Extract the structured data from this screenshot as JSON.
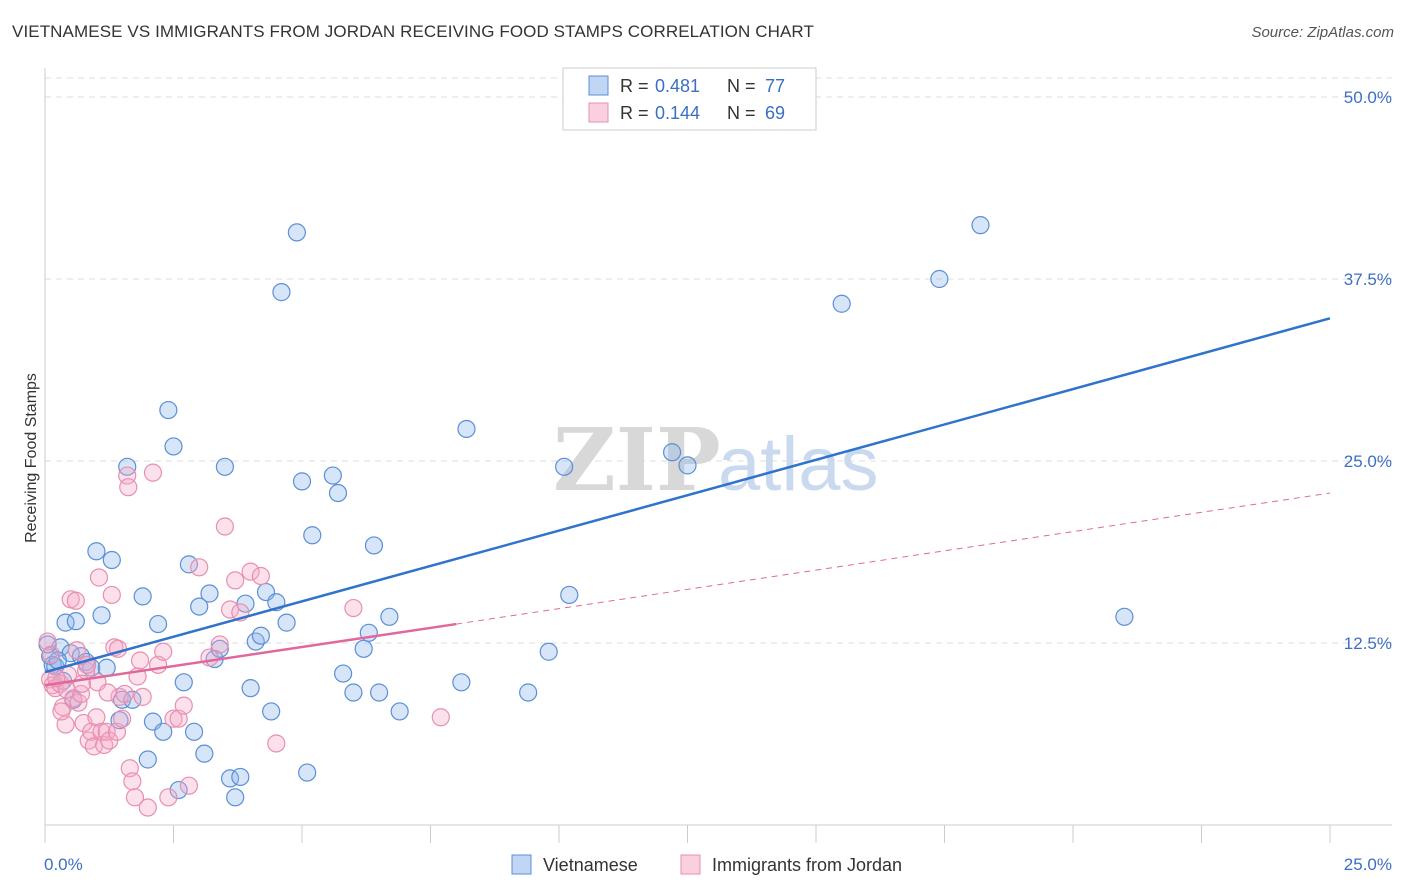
{
  "title": "VIETNAMESE VS IMMIGRANTS FROM JORDAN RECEIVING FOOD STAMPS CORRELATION CHART",
  "source": "Source: ZipAtlas.com",
  "colors": {
    "vietnamese": "#5b8fd6",
    "vietnamese_fill": "rgba(140,180,235,0.35)",
    "vietnamese_line": "#2f73cc",
    "jordan": "#e78fb0",
    "jordan_fill": "rgba(245,170,200,0.35)",
    "jordan_line": "#e0689a",
    "tick": "#3d6fc4",
    "grid": "#dddddd"
  },
  "legend": {
    "rows": [
      {
        "r_label": "R =",
        "r_value": "0.481",
        "n_label": "N =",
        "n_value": "77"
      },
      {
        "r_label": "R =",
        "r_value": "0.144",
        "n_label": "N =",
        "n_value": "69"
      }
    ]
  },
  "chart_data": {
    "type": "scatter",
    "title": "VIETNAMESE VS IMMIGRANTS FROM JORDAN RECEIVING FOOD STAMPS CORRELATION CHART",
    "xlabel": "",
    "ylabel": "Receiving Food Stamps",
    "xlim": [
      0,
      25
    ],
    "ylim": [
      0,
      50
    ],
    "x_ticks": [
      "0.0%",
      "25.0%"
    ],
    "y_ticks": [
      {
        "value": 12.5,
        "label": "12.5%"
      },
      {
        "value": 25,
        "label": "25.0%"
      },
      {
        "value": 37.5,
        "label": "37.5%"
      },
      {
        "value": 50,
        "label": "50.0%"
      }
    ],
    "grid": true,
    "legend_position": "top-center",
    "watermark": "ZIPatlas",
    "series": [
      {
        "name": "Vietnamese",
        "trend": {
          "x": [
            0,
            25
          ],
          "y": [
            10.5,
            34.8
          ]
        },
        "points": [
          [
            0.1,
            11.6
          ],
          [
            0.15,
            11.0
          ],
          [
            0.2,
            10.9
          ],
          [
            0.3,
            12.2
          ],
          [
            0.4,
            13.9
          ],
          [
            0.5,
            11.8
          ],
          [
            0.6,
            14.0
          ],
          [
            0.7,
            11.6
          ],
          [
            0.8,
            11.2
          ],
          [
            0.9,
            10.8
          ],
          [
            1.0,
            18.8
          ],
          [
            1.1,
            14.4
          ],
          [
            1.2,
            10.8
          ],
          [
            1.3,
            18.2
          ],
          [
            1.5,
            8.6
          ],
          [
            1.6,
            24.6
          ],
          [
            1.7,
            8.6
          ],
          [
            1.9,
            15.7
          ],
          [
            2.0,
            4.5
          ],
          [
            2.1,
            7.1
          ],
          [
            2.2,
            13.8
          ],
          [
            2.3,
            6.4
          ],
          [
            2.4,
            28.5
          ],
          [
            2.5,
            26.0
          ],
          [
            2.6,
            2.4
          ],
          [
            2.7,
            9.8
          ],
          [
            2.8,
            17.9
          ],
          [
            2.9,
            6.4
          ],
          [
            3.0,
            15.0
          ],
          [
            3.1,
            4.9
          ],
          [
            3.2,
            15.9
          ],
          [
            3.3,
            11.4
          ],
          [
            3.4,
            12.1
          ],
          [
            3.5,
            24.6
          ],
          [
            3.6,
            3.2
          ],
          [
            3.7,
            1.9
          ],
          [
            3.8,
            3.3
          ],
          [
            3.9,
            15.2
          ],
          [
            4.0,
            9.4
          ],
          [
            4.1,
            12.6
          ],
          [
            4.2,
            13.0
          ],
          [
            4.3,
            16.0
          ],
          [
            4.4,
            7.8
          ],
          [
            4.5,
            15.3
          ],
          [
            4.6,
            36.6
          ],
          [
            4.7,
            13.9
          ],
          [
            4.9,
            40.7
          ],
          [
            5.0,
            23.6
          ],
          [
            5.1,
            3.6
          ],
          [
            5.2,
            19.9
          ],
          [
            5.6,
            24.0
          ],
          [
            5.7,
            22.8
          ],
          [
            5.8,
            10.4
          ],
          [
            6.0,
            9.1
          ],
          [
            6.2,
            12.1
          ],
          [
            6.3,
            13.2
          ],
          [
            6.4,
            19.2
          ],
          [
            6.5,
            9.1
          ],
          [
            6.7,
            14.3
          ],
          [
            6.9,
            7.8
          ],
          [
            8.1,
            9.8
          ],
          [
            8.2,
            27.2
          ],
          [
            9.4,
            9.1
          ],
          [
            9.8,
            11.9
          ],
          [
            10.1,
            24.6
          ],
          [
            10.2,
            15.8
          ],
          [
            12.2,
            25.6
          ],
          [
            12.5,
            24.7
          ],
          [
            15.5,
            35.8
          ],
          [
            17.4,
            37.5
          ],
          [
            18.2,
            41.2
          ],
          [
            21.0,
            14.3
          ],
          [
            0.05,
            12.4
          ],
          [
            0.25,
            11.3
          ],
          [
            0.55,
            8.6
          ],
          [
            1.45,
            7.2
          ],
          [
            0.35,
            9.9
          ]
        ]
      },
      {
        "name": "Immigrants from Jordan",
        "trend": {
          "x": [
            0,
            8
          ],
          "y": [
            9.6,
            13.8
          ]
        },
        "trend_extension": {
          "x": [
            8,
            25
          ],
          "y": [
            13.8,
            22.8
          ]
        },
        "points": [
          [
            0.05,
            12.6
          ],
          [
            0.1,
            10.0
          ],
          [
            0.15,
            9.6
          ],
          [
            0.2,
            9.4
          ],
          [
            0.3,
            9.7
          ],
          [
            0.35,
            8.1
          ],
          [
            0.4,
            6.9
          ],
          [
            0.45,
            10.3
          ],
          [
            0.5,
            15.5
          ],
          [
            0.55,
            8.7
          ],
          [
            0.6,
            15.4
          ],
          [
            0.65,
            8.4
          ],
          [
            0.7,
            9.0
          ],
          [
            0.75,
            7.0
          ],
          [
            0.8,
            10.6
          ],
          [
            0.85,
            5.8
          ],
          [
            0.9,
            6.4
          ],
          [
            0.95,
            5.4
          ],
          [
            1.0,
            7.4
          ],
          [
            1.05,
            17.0
          ],
          [
            1.1,
            6.4
          ],
          [
            1.15,
            5.5
          ],
          [
            1.2,
            6.4
          ],
          [
            1.25,
            5.8
          ],
          [
            1.3,
            15.8
          ],
          [
            1.35,
            12.2
          ],
          [
            1.4,
            6.4
          ],
          [
            1.45,
            8.8
          ],
          [
            1.5,
            7.3
          ],
          [
            1.55,
            9.0
          ],
          [
            1.6,
            24.0
          ],
          [
            1.65,
            3.9
          ],
          [
            1.7,
            3.0
          ],
          [
            1.75,
            1.9
          ],
          [
            1.8,
            10.2
          ],
          [
            1.85,
            11.3
          ],
          [
            1.9,
            8.8
          ],
          [
            2.0,
            1.2
          ],
          [
            2.1,
            24.2
          ],
          [
            2.2,
            11.0
          ],
          [
            2.4,
            1.9
          ],
          [
            2.5,
            7.3
          ],
          [
            2.6,
            7.3
          ],
          [
            2.7,
            8.2
          ],
          [
            2.8,
            2.7
          ],
          [
            3.0,
            17.7
          ],
          [
            3.2,
            11.5
          ],
          [
            3.4,
            12.4
          ],
          [
            3.5,
            20.5
          ],
          [
            3.6,
            14.8
          ],
          [
            3.7,
            16.8
          ],
          [
            3.8,
            14.6
          ],
          [
            4.0,
            17.4
          ],
          [
            4.2,
            17.1
          ],
          [
            4.5,
            5.6
          ],
          [
            6.0,
            14.9
          ],
          [
            7.7,
            7.4
          ],
          [
            0.12,
            11.7
          ],
          [
            0.22,
            10.1
          ],
          [
            0.42,
            9.3
          ],
          [
            0.62,
            12.0
          ],
          [
            0.82,
            11.0
          ],
          [
            1.02,
            9.8
          ],
          [
            1.22,
            9.1
          ],
          [
            1.42,
            12.1
          ],
          [
            1.62,
            23.2
          ],
          [
            0.32,
            7.8
          ],
          [
            0.72,
            9.7
          ],
          [
            2.3,
            11.9
          ]
        ]
      }
    ]
  },
  "bottom_legend": {
    "items": [
      "Vietnamese",
      "Immigrants from Jordan"
    ]
  }
}
